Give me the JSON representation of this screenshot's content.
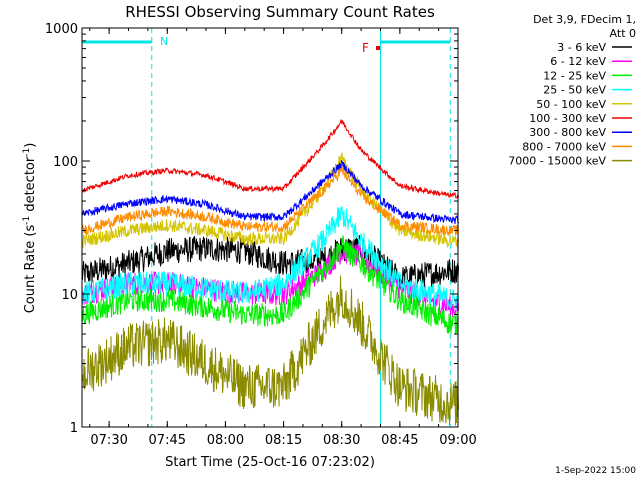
{
  "chart_data": {
    "type": "line",
    "title": "RHESSI Observing Summary Count Rates",
    "xlabel": "Start Time (25-Oct-16 07:23:02)",
    "ylabel_prefix": "Count Rate (s",
    "ylabel_sup1": "-1",
    "ylabel_middle": " detector",
    "ylabel_sup2": "-1",
    "ylabel_suffix": ")",
    "y_scale": "log",
    "ylim": [
      1,
      1000
    ],
    "xlim_minutes": [
      "07:23",
      "09:00"
    ],
    "x_ticks": [
      "07:30",
      "07:45",
      "08:00",
      "08:15",
      "08:30",
      "08:45",
      "09:00"
    ],
    "y_ticks": [
      "1",
      "10",
      "100",
      "1000"
    ],
    "legend_header": [
      "Det 3,9, FDecim 1,",
      "Att 0"
    ],
    "legend_placement": "right",
    "timestamp": "1-Sep-2022 15:00",
    "annotations": {
      "night_marker": "N",
      "flare_marker": "F",
      "night_intervals": [
        [
          "07:23",
          "07:41"
        ],
        [
          "08:40",
          "08:58"
        ]
      ]
    },
    "series": [
      {
        "name": "3 - 6 keV",
        "color": "#000000",
        "x": [
          "07:23",
          "07:35",
          "07:45",
          "07:55",
          "08:05",
          "08:15",
          "08:25",
          "08:30",
          "08:35",
          "08:45",
          "08:58"
        ],
        "values": [
          14,
          17,
          21,
          22,
          21,
          17,
          18,
          22,
          22,
          13,
          15
        ]
      },
      {
        "name": "6 - 12 keV",
        "color": "#ff00ff",
        "x": [
          "07:23",
          "07:35",
          "07:45",
          "07:55",
          "08:05",
          "08:15",
          "08:25",
          "08:30",
          "08:35",
          "08:45",
          "08:58"
        ],
        "values": [
          10,
          12,
          12,
          11,
          10,
          10,
          15,
          21,
          19,
          11,
          8
        ]
      },
      {
        "name": "12 - 25 keV",
        "color": "#00ee00",
        "x": [
          "07:23",
          "07:35",
          "07:45",
          "07:55",
          "08:05",
          "08:15",
          "08:25",
          "08:30",
          "08:35",
          "08:45",
          "08:58"
        ],
        "values": [
          7,
          9,
          9,
          8,
          7,
          7,
          15,
          23,
          17,
          9,
          6
        ]
      },
      {
        "name": "25 - 50 keV",
        "color": "#00ffff",
        "x": [
          "07:23",
          "07:35",
          "07:45",
          "07:55",
          "08:05",
          "08:15",
          "08:25",
          "08:30",
          "08:35",
          "08:45",
          "08:58"
        ],
        "values": [
          10,
          12,
          12,
          11,
          10,
          12,
          25,
          40,
          25,
          12,
          9
        ]
      },
      {
        "name": "50 - 100 keV",
        "color": "#d4c400",
        "x": [
          "07:23",
          "07:35",
          "07:45",
          "07:55",
          "08:05",
          "08:15",
          "08:25",
          "08:30",
          "08:35",
          "08:45",
          "08:58"
        ],
        "values": [
          25,
          30,
          33,
          30,
          26,
          26,
          60,
          105,
          60,
          30,
          25
        ]
      },
      {
        "name": "100 - 300 keV",
        "color": "#ee0000",
        "x": [
          "07:23",
          "07:35",
          "07:45",
          "07:55",
          "08:05",
          "08:15",
          "08:25",
          "08:30",
          "08:35",
          "08:45",
          "08:58"
        ],
        "values": [
          60,
          78,
          85,
          78,
          62,
          62,
          130,
          200,
          120,
          65,
          55
        ]
      },
      {
        "name": "300 - 800 keV",
        "color": "#0000ff",
        "x": [
          "07:23",
          "07:35",
          "07:45",
          "07:55",
          "08:05",
          "08:15",
          "08:25",
          "08:30",
          "08:35",
          "08:45",
          "08:58"
        ],
        "values": [
          40,
          48,
          52,
          47,
          38,
          38,
          70,
          95,
          65,
          40,
          36
        ]
      },
      {
        "name": "800 - 7000 keV",
        "color": "#ff8c00",
        "x": [
          "07:23",
          "07:35",
          "07:45",
          "07:55",
          "08:05",
          "08:15",
          "08:25",
          "08:30",
          "08:35",
          "08:45",
          "08:58"
        ],
        "values": [
          30,
          38,
          42,
          38,
          32,
          32,
          60,
          85,
          55,
          33,
          30
        ]
      },
      {
        "name": "7000 - 15000 keV",
        "color": "#8b8b00",
        "x": [
          "07:23",
          "07:35",
          "07:45",
          "07:55",
          "08:05",
          "08:15",
          "08:25",
          "08:30",
          "08:35",
          "08:45",
          "08:58"
        ],
        "values": [
          2.5,
          4,
          4.5,
          3,
          2,
          2,
          6,
          10,
          6,
          2,
          1.5
        ]
      }
    ]
  }
}
